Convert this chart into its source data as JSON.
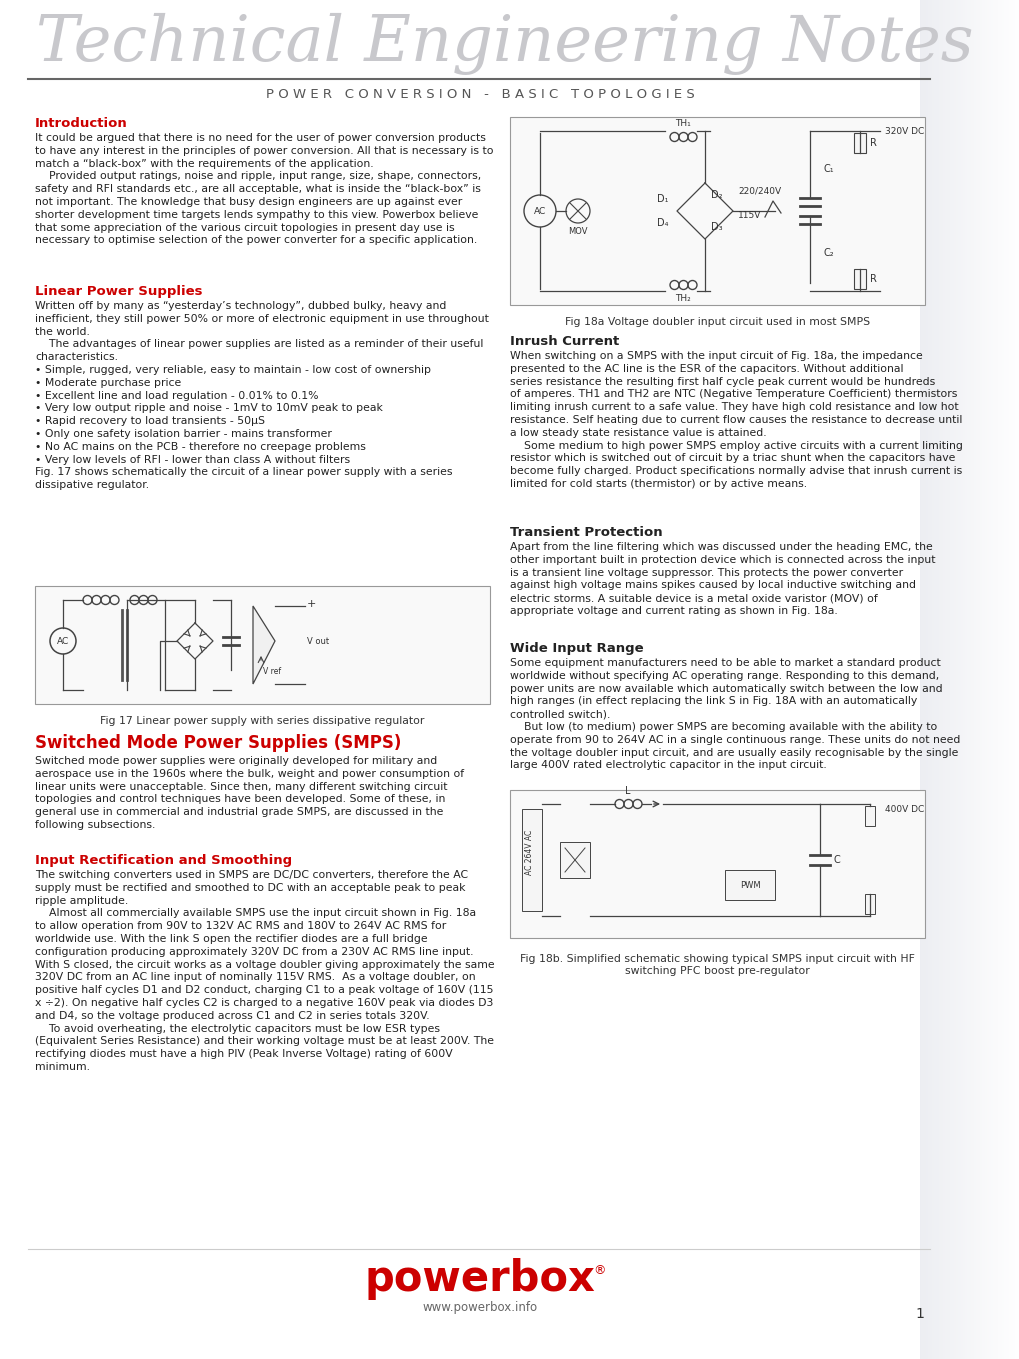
{
  "title_main": "Technical Engineering Notes",
  "title_sub": "P O W E R   C O N V E R S I O N   -   B A S I C   T O P O L O G I E S",
  "title_main_color": "#c8c8cc",
  "title_sub_color": "#555555",
  "header_line_color": "#555555",
  "bg_color": "#ffffff",
  "accent_color": "#cc0000",
  "text_color": "#222222",
  "footer_logo_text": "powerbox",
  "footer_logo_color": "#cc0000",
  "footer_url": "www.powerbox.info",
  "footer_page": "1",
  "section_intro_title": "Introduction",
  "section_intro_body": "It could be argued that there is no need for the user of power conversion products\nto have any interest in the principles of power conversion. All that is necessary is to\nmatch a “black-box” with the requirements of the application.\n    Provided output ratings, noise and ripple, input range, size, shape, connectors,\nsafety and RFI standards etc., are all acceptable, what is inside the “black-box” is\nnot important. The knowledge that busy design engineers are up against ever\nshorter development time targets lends sympathy to this view. Powerbox believe\nthat some appreciation of the various circuit topologies in present day use is\nnecessary to optimise selection of the power converter for a specific application.",
  "section_linear_title": "Linear Power Supplies",
  "section_linear_body": "Written off by many as “yesterday’s technology”, dubbed bulky, heavy and\ninefficient, they still power 50% or more of electronic equipment in use throughout\nthe world.\n    The advantages of linear power supplies are listed as a reminder of their useful\ncharacteristics.\n• Simple, rugged, very reliable, easy to maintain - low cost of ownership\n• Moderate purchase price\n• Excellent line and load regulation - 0.01% to 0.1%\n• Very low output ripple and noise - 1mV to 10mV peak to peak\n• Rapid recovery to load transients - 50µS\n• Only one safety isolation barrier - mains transformer\n• No AC mains on the PCB - therefore no creepage problems\n• Very low levels of RFI - lower than class A without filters\nFig. 17 shows schematically the circuit of a linear power supply with a series\ndissipative regulator.",
  "section_smps_title": "Switched Mode Power Supplies (SMPS)",
  "section_smps_body": "Switched mode power supplies were originally developed for military and\naerospace use in the 1960s where the bulk, weight and power consumption of\nlinear units were unacceptable. Since then, many different switching circuit\ntopologies and control techniques have been developed. Some of these, in\ngeneral use in commercial and industrial grade SMPS, are discussed in the\nfollowing subsections.",
  "section_input_title": "Input Rectification and Smoothing",
  "section_input_body": "The switching converters used in SMPS are DC/DC converters, therefore the AC\nsupply must be rectified and smoothed to DC with an acceptable peak to peak\nripple amplitude.\n    Almost all commercially available SMPS use the input circuit shown in Fig. 18a\nto allow operation from 90V to 132V AC RMS and 180V to 264V AC RMS for\nworldwide use. With the link S open the rectifier diodes are a full bridge\nconfiguration producing approximately 320V DC from a 230V AC RMS line input.\nWith S closed, the circuit works as a voltage doubler giving approximately the same\n320V DC from an AC line input of nominally 115V RMS.  As a voltage doubler, on\npositive half cycles D1 and D2 conduct, charging C1 to a peak voltage of 160V (115\nx ÷2). On negative half cycles C2 is charged to a negative 160V peak via diodes D3\nand D4, so the voltage produced across C1 and C2 in series totals 320V.\n    To avoid overheating, the electrolytic capacitors must be low ESR types\n(Equivalent Series Resistance) and their working voltage must be at least 200V. The\nrectifying diodes must have a high PIV (Peak Inverse Voltage) rating of 600V\nminimum.",
  "section_inrush_title": "Inrush Current",
  "section_inrush_body": "When switching on a SMPS with the input circuit of Fig. 18a, the impedance\npresented to the AC line is the ESR of the capacitors. Without additional\nseries resistance the resulting first half cycle peak current would be hundreds\nof amperes. TH1 and TH2 are NTC (Negative Temperature Coefficient) thermistors\nlimiting inrush current to a safe value. They have high cold resistance and low hot\nresistance. Self heating due to current flow causes the resistance to decrease until\na low steady state resistance value is attained.\n    Some medium to high power SMPS employ active circuits with a current limiting\nresistor which is switched out of circuit by a triac shunt when the capacitors have\nbecome fully charged. Product specifications normally advise that inrush current is\nlimited for cold starts (thermistor) or by active means.",
  "section_transient_title": "Transient Protection",
  "section_transient_body": "Apart from the line filtering which was discussed under the heading EMC, the\nother important built in protection device which is connected across the input\nis a transient line voltage suppressor. This protects the power converter\nagainst high voltage mains spikes caused by local inductive switching and\nelectric storms. A suitable device is a metal oxide varistor (MOV) of\nappropriate voltage and current rating as shown in Fig. 18a.",
  "section_wide_title": "Wide Input Range",
  "section_wide_body": "Some equipment manufacturers need to be able to market a standard product\nworldwide without specifying AC operating range. Responding to this demand,\npower units are now available which automatically switch between the low and\nhigh ranges (in effect replacing the link S in Fig. 18A with an automatically\ncontrolled switch).\n    But low (to medium) power SMPS are becoming available with the ability to\noperate from 90 to 264V AC in a single continuous range. These units do not need\nthe voltage doubler input circuit, and are usually easily recognisable by the single\nlarge 400V rated electrolytic capacitor in the input circuit.",
  "fig17_caption": "Fig 17 Linear power supply with series dissipative regulator",
  "fig18a_caption": "Fig 18a Voltage doubler input circuit used in most SMPS",
  "fig18b_caption": "Fig 18b. Simplified schematic showing typical SMPS input circuit with HF\nswitching PFC boost pre-regulator"
}
